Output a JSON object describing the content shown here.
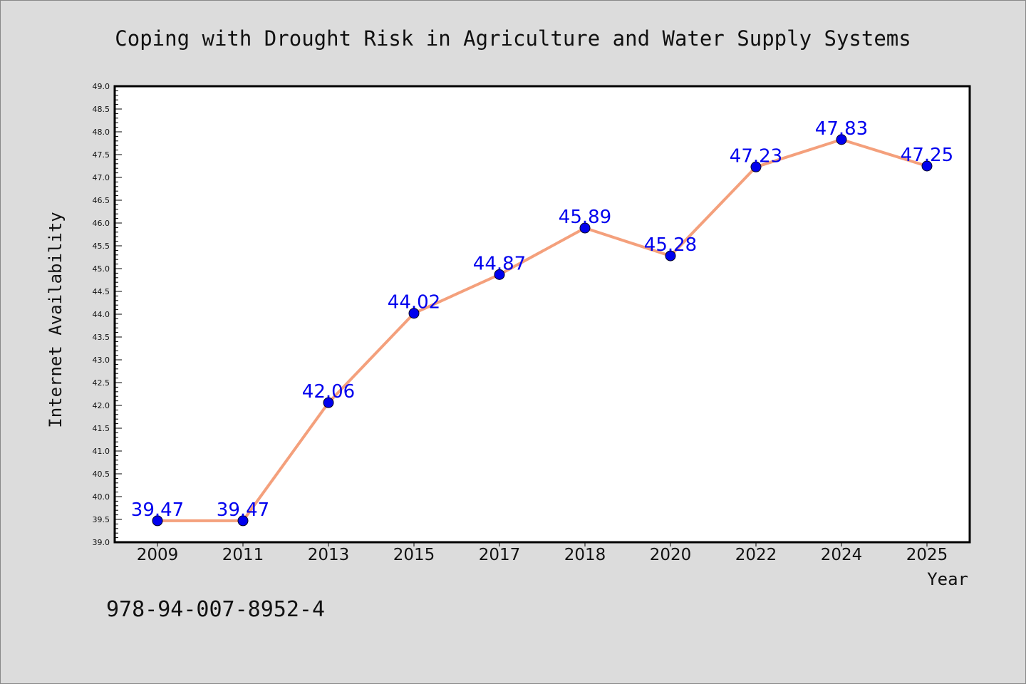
{
  "chart_data": {
    "type": "line",
    "title": "Coping with Drought Risk in Agriculture and Water Supply Systems",
    "xlabel": "Year",
    "ylabel": "Internet Availability",
    "categories": [
      "2009",
      "2011",
      "2013",
      "2015",
      "2017",
      "2018",
      "2020",
      "2022",
      "2024",
      "2025"
    ],
    "series": [
      {
        "values": [
          39.47,
          39.47,
          42.06,
          44.02,
          44.87,
          45.89,
          45.28,
          47.23,
          47.83,
          47.25
        ],
        "labels": [
          "39.47",
          "39.47",
          "42.06",
          "44.02",
          "44.87",
          "45.89",
          "45.28",
          "47.23",
          "47.83",
          "47.25"
        ]
      }
    ],
    "ylim": [
      39.0,
      49.0
    ],
    "yticks": [
      "39.0",
      "39.5",
      "40.0",
      "40.5",
      "41.0",
      "41.5",
      "42.0",
      "42.5",
      "43.0",
      "43.5",
      "44.0",
      "44.5",
      "45.0",
      "45.5",
      "46.0",
      "46.5",
      "47.0",
      "47.5",
      "48.0",
      "48.5",
      "49.0"
    ],
    "grid": false,
    "legend": "none",
    "colors": {
      "line": "#f4a07c",
      "marker": "#0000ee",
      "data_label": "#0000ee",
      "plot_background": "#ffffff",
      "figure_background": "#dcdcdc"
    }
  },
  "annotation": {
    "isbn": "978-94-007-8952-4"
  }
}
